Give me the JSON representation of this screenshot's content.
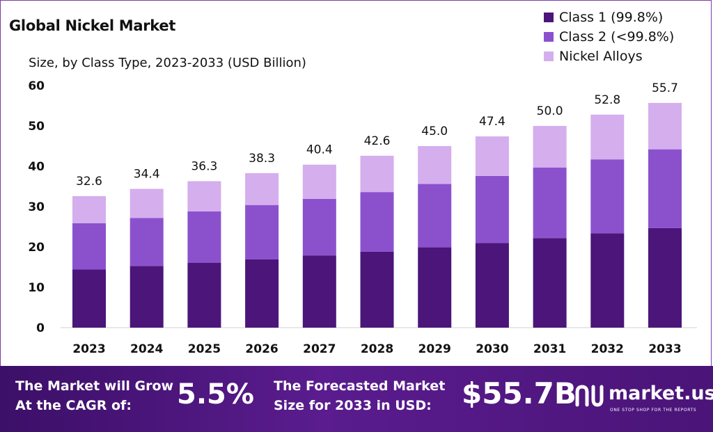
{
  "chart_data": {
    "type": "bar",
    "stacked": true,
    "title": "Global Nickel Market",
    "subtitle": "Size, by Class Type, 2023-2033 (USD Billion)",
    "categories": [
      "2023",
      "2024",
      "2025",
      "2026",
      "2027",
      "2028",
      "2029",
      "2030",
      "2031",
      "2032",
      "2033"
    ],
    "series": [
      {
        "name": "Class 1 (99.8%)",
        "color": "#4b1579",
        "values": [
          14.4,
          15.3,
          16.1,
          16.9,
          17.9,
          18.8,
          19.9,
          21.0,
          22.2,
          23.4,
          24.7
        ]
      },
      {
        "name": "Class 2 (<99.8%)",
        "color": "#8b51cd",
        "values": [
          11.5,
          11.9,
          12.7,
          13.5,
          14.0,
          14.8,
          15.7,
          16.6,
          17.5,
          18.3,
          19.5
        ]
      },
      {
        "name": "Nickel Alloys",
        "color": "#d5aeee",
        "values": [
          6.7,
          7.2,
          7.5,
          7.9,
          8.5,
          9.0,
          9.4,
          9.8,
          10.3,
          11.1,
          11.5
        ]
      }
    ],
    "totals": [
      "32.6",
      "34.4",
      "36.3",
      "38.3",
      "40.4",
      "42.6",
      "45.0",
      "47.4",
      "50.0",
      "52.8",
      "55.7"
    ],
    "ylim": [
      0,
      60
    ],
    "yticks": [
      "0",
      "10",
      "20",
      "30",
      "40",
      "50",
      "60"
    ],
    "legend_position": "top-right",
    "grid": false
  },
  "banner": {
    "cagr_line1": "The Market will Grow",
    "cagr_line2": "At the CAGR of:",
    "cagr_value": "5.5%",
    "forecast_line1": "The Forecasted Market",
    "forecast_line2": "Size for 2033 in USD:",
    "forecast_value": "$55.7B",
    "logo_name": "market.us",
    "logo_tagline": "ONE STOP SHOP FOR THE REPORTS"
  }
}
